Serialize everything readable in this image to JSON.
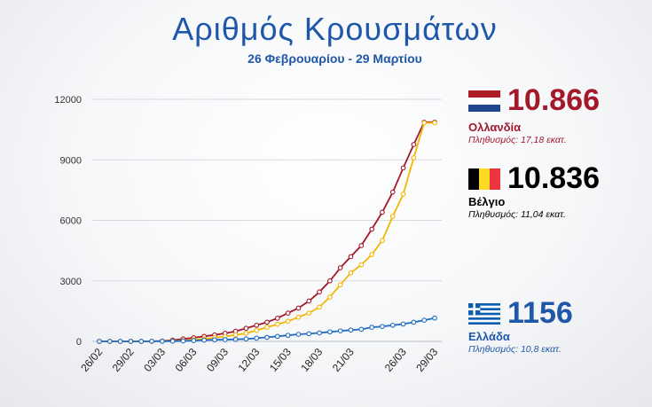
{
  "title": "Αριθμός Κρουσμάτων",
  "subtitle": "26 Φεβρουαρίου - 29 Μαρτίου",
  "countries": [
    {
      "value": "10.866",
      "name": "Ολλανδία",
      "population": "Πληθυσμός: 17,18 εκατ.",
      "color": "#a3182b",
      "pop_color": "#a3182b",
      "flag": "netherlands-flag-icon"
    },
    {
      "value": "10.836",
      "name": "Βέλγιο",
      "population": "Πληθυσμός: 11,04 εκατ.",
      "color": "#000000",
      "pop_color": "#000000",
      "flag": "belgium-flag-icon"
    },
    {
      "value": "1156",
      "name": "Ελλάδα",
      "population": "Πληθυσμός: 10,8 εκατ.",
      "color": "#1f58a8",
      "pop_color": "#1f58a8",
      "flag": "greece-flag-icon"
    }
  ],
  "chart_data": {
    "type": "line",
    "title": "Αριθμός Κρουσμάτων",
    "xlabel": "",
    "ylabel": "",
    "x": [
      "26/02",
      "27/02",
      "28/02",
      "29/02",
      "01/03",
      "02/03",
      "03/03",
      "04/03",
      "05/03",
      "06/03",
      "07/03",
      "08/03",
      "09/03",
      "10/03",
      "11/03",
      "12/03",
      "13/03",
      "14/03",
      "15/03",
      "16/03",
      "17/03",
      "18/03",
      "19/03",
      "20/03",
      "21/03",
      "22/03",
      "23/03",
      "24/03",
      "25/03",
      "26/03",
      "27/03",
      "28/03",
      "29/03"
    ],
    "tick_labels": [
      "26/02",
      "29/02",
      "03/03",
      "06/03",
      "09/03",
      "12/03",
      "15/03",
      "18/03",
      "21/03",
      "26/03",
      "29/03"
    ],
    "ylim": [
      0,
      12000
    ],
    "yticks": [
      0,
      3000,
      6000,
      9000,
      12000
    ],
    "grid": true,
    "series": [
      {
        "name": "Ολλανδία",
        "color": "#a3182b",
        "values": [
          0,
          0,
          0,
          0,
          1,
          2,
          20,
          60,
          120,
          180,
          250,
          320,
          400,
          500,
          650,
          800,
          950,
          1150,
          1400,
          1650,
          2000,
          2450,
          3000,
          3650,
          4200,
          4750,
          5560,
          6400,
          7400,
          8600,
          9760,
          10866,
          10866
        ]
      },
      {
        "name": "Βέλγιο",
        "color": "#f2b705",
        "values": [
          0,
          0,
          0,
          0,
          1,
          2,
          10,
          20,
          40,
          80,
          120,
          180,
          240,
          320,
          400,
          550,
          700,
          850,
          1000,
          1200,
          1400,
          1700,
          2200,
          2800,
          3400,
          3800,
          4300,
          5000,
          6200,
          7300,
          9100,
          10836,
          10836
        ]
      },
      {
        "name": "Ελλάδα",
        "color": "#1f6cc0",
        "values": [
          0,
          0,
          0,
          0,
          1,
          4,
          7,
          10,
          20,
          40,
          60,
          80,
          90,
          100,
          120,
          160,
          200,
          250,
          300,
          350,
          380,
          420,
          470,
          520,
          560,
          600,
          700,
          740,
          800,
          860,
          950,
          1050,
          1156
        ]
      }
    ]
  }
}
